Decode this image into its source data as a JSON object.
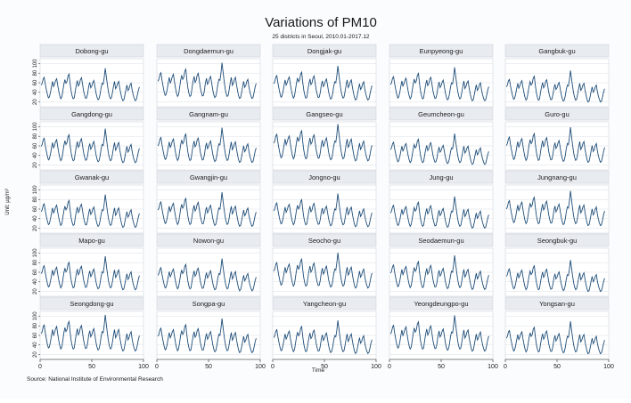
{
  "chart_data": {
    "type": "line",
    "title": "Variations of PM10",
    "subtitle": "25 districts in Seoul, 2010.01-2017.12",
    "xlabel": "Time",
    "ylabel": "Unit: µg/m³",
    "source": "Source: National Institute of Environmental Research",
    "grid": true,
    "xlim": [
      0,
      100
    ],
    "ylim": [
      10,
      110
    ],
    "xticks": [
      0,
      50,
      100
    ],
    "yticks": [
      20,
      40,
      60,
      80,
      100
    ],
    "x": [
      1,
      2,
      3,
      4,
      5,
      6,
      7,
      8,
      9,
      10,
      11,
      12,
      13,
      14,
      15,
      16,
      17,
      18,
      19,
      20,
      21,
      22,
      23,
      24,
      25,
      26,
      27,
      28,
      29,
      30,
      31,
      32,
      33,
      34,
      35,
      36,
      37,
      38,
      39,
      40,
      41,
      42,
      43,
      44,
      45,
      46,
      47,
      48,
      49,
      50,
      51,
      52,
      53,
      54,
      55,
      56,
      57,
      58,
      59,
      60,
      61,
      62,
      63,
      64,
      65,
      66,
      67,
      68,
      69,
      70,
      71,
      72,
      73,
      74,
      75,
      76,
      77,
      78,
      79,
      80,
      81,
      82,
      83,
      84,
      85,
      86,
      87,
      88,
      89,
      90,
      91,
      92,
      93,
      94,
      95,
      96
    ],
    "base_series": [
      58,
      62,
      72,
      75,
      60,
      48,
      38,
      30,
      32,
      42,
      55,
      66,
      55,
      60,
      68,
      72,
      58,
      45,
      35,
      28,
      32,
      45,
      60,
      70,
      62,
      66,
      78,
      82,
      62,
      45,
      34,
      28,
      30,
      44,
      58,
      68,
      56,
      60,
      70,
      74,
      60,
      46,
      36,
      29,
      30,
      40,
      55,
      64,
      52,
      56,
      64,
      68,
      55,
      42,
      32,
      26,
      28,
      38,
      52,
      62,
      60,
      74,
      95,
      78,
      60,
      44,
      34,
      28,
      30,
      42,
      56,
      66,
      50,
      54,
      62,
      66,
      52,
      40,
      30,
      24,
      26,
      36,
      48,
      58,
      46,
      50,
      58,
      62,
      48,
      37,
      29,
      24,
      26,
      35,
      46,
      54
    ],
    "series": [
      {
        "name": "Dobong-gu",
        "scale": 0.95,
        "offset": 0
      },
      {
        "name": "Dongdaemun-gu",
        "scale": 1.05,
        "offset": 2
      },
      {
        "name": "Dongjak-gu",
        "scale": 1.0,
        "offset": 0
      },
      {
        "name": "Eunpyeong-gu",
        "scale": 0.98,
        "offset": -1
      },
      {
        "name": "Gangbuk-gu",
        "scale": 0.92,
        "offset": -2
      },
      {
        "name": "Gangdong-gu",
        "scale": 1.0,
        "offset": 1
      },
      {
        "name": "Gangnam-gu",
        "scale": 1.02,
        "offset": 1
      },
      {
        "name": "Gangseo-gu",
        "scale": 1.08,
        "offset": 3
      },
      {
        "name": "Geumcheon-gu",
        "scale": 0.9,
        "offset": 0
      },
      {
        "name": "Guro-gu",
        "scale": 1.03,
        "offset": 1
      },
      {
        "name": "Gwanak-gu",
        "scale": 0.96,
        "offset": -1
      },
      {
        "name": "Gwangjin-gu",
        "scale": 1.0,
        "offset": 0
      },
      {
        "name": "Jongno-gu",
        "scale": 0.97,
        "offset": 0
      },
      {
        "name": "Jung-gu",
        "scale": 0.93,
        "offset": -2
      },
      {
        "name": "Jungnang-gu",
        "scale": 1.02,
        "offset": 1
      },
      {
        "name": "Mapo-gu",
        "scale": 0.98,
        "offset": 0
      },
      {
        "name": "Nowon-gu",
        "scale": 0.94,
        "offset": -1
      },
      {
        "name": "Seocho-gu",
        "scale": 1.04,
        "offset": 2
      },
      {
        "name": "Seodaemun-gu",
        "scale": 1.0,
        "offset": 0
      },
      {
        "name": "Seongbuk-gu",
        "scale": 0.92,
        "offset": -2
      },
      {
        "name": "Seongdong-gu",
        "scale": 1.06,
        "offset": 2
      },
      {
        "name": "Songpa-gu",
        "scale": 1.0,
        "offset": 0
      },
      {
        "name": "Yangcheon-gu",
        "scale": 0.97,
        "offset": -1
      },
      {
        "name": "Yeongdeungpo-gu",
        "scale": 1.05,
        "offset": 2
      },
      {
        "name": "Yongsan-gu",
        "scale": 0.95,
        "offset": -1
      }
    ]
  },
  "colors": {
    "line": "#1f4e79",
    "panel_bg": "#ffffff",
    "strip_bg": "#e8ecf1",
    "grid": "#d9dee5",
    "axis": "#222222",
    "frame": "#c7ced6"
  }
}
